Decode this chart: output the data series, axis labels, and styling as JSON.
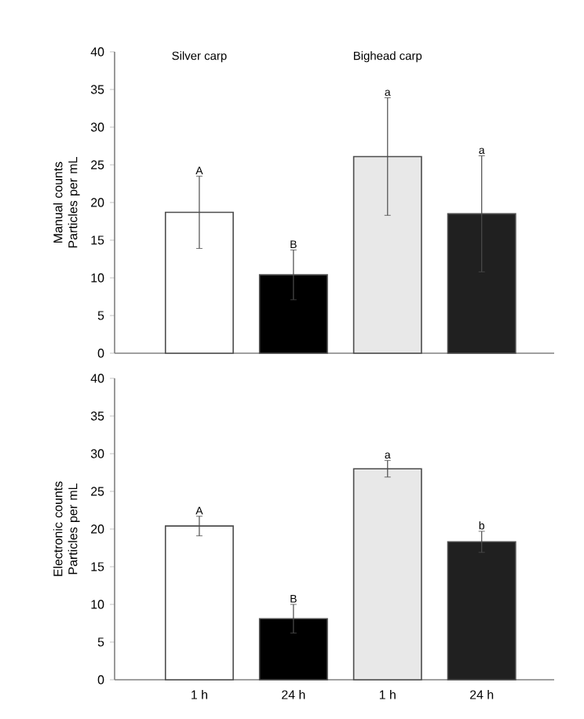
{
  "chart_data": [
    {
      "type": "bar",
      "ylabel": "Manual counts Particles per mL",
      "categories": [
        null,
        null,
        null,
        null
      ],
      "tick_labels": "y",
      "values": [
        18.7,
        10.4,
        26.1,
        18.5
      ],
      "errors": [
        4.8,
        3.3,
        7.8,
        7.7
      ],
      "colors": [
        "#ffffff",
        "#000000",
        "#e8e8e8",
        "#202020"
      ],
      "ylim": [
        0,
        40
      ],
      "yticks": [
        0,
        5,
        10,
        15,
        20,
        25,
        30,
        35,
        40
      ],
      "annotations": [
        "Silver carp",
        "Bighead carp",
        "A",
        "B",
        "a",
        "a"
      ]
    },
    {
      "type": "bar",
      "ylabel": "Electronic counts Particles per mL",
      "categories": [
        "1 h",
        "24 h",
        "1 h",
        "24 h"
      ],
      "values": [
        20.4,
        8.1,
        28.0,
        18.3
      ],
      "errors": [
        1.3,
        1.9,
        1.1,
        1.4
      ],
      "colors": [
        "#ffffff",
        "#000000",
        "#e8e8e8",
        "#202020"
      ],
      "ylim": [
        0,
        40
      ],
      "yticks": [
        0,
        5,
        10,
        15,
        20,
        25,
        30,
        35,
        40
      ],
      "annotations": [
        "A",
        "B",
        "a",
        "b"
      ]
    }
  ]
}
